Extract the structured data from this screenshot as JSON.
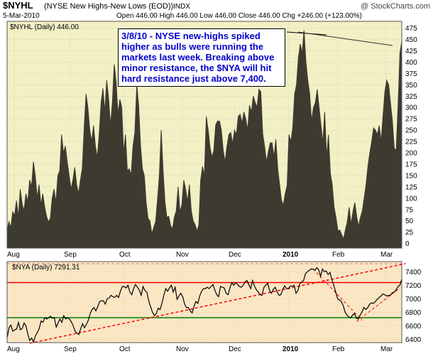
{
  "header": {
    "symbol": "$NYHL",
    "description": "(NYSE New Highs-New Lows (EOD))",
    "exchange": "INDX",
    "watermark": "@ StockCharts.com",
    "date": "5-Mar-2010",
    "quote": "Open 446.00  High 446.00  Low 446.00  Close 446.00  Chg +246.00 (+123.00%)"
  },
  "annotation": "3/8/10 - NYSE new-highs spiked higher as bulls were running the markets last week.  Breaking above minor resistance, the $NYA will hit hard resistance just above 7,400.",
  "colors": {
    "top_bg": "#f2f0c4",
    "area_fill": "#3d3a30",
    "bottom_bg": "#fbe6c4",
    "nya_line": "#000000",
    "resistance": "#ff0000",
    "support": "#008000",
    "trend": "#ff0000"
  },
  "chart_data": [
    {
      "type": "area",
      "legend": "$NYHL (Daily) 446.00",
      "ylim": [
        -10,
        490
      ],
      "y_ticks": [
        "0",
        "25",
        "50",
        "75",
        "100",
        "125",
        "150",
        "175",
        "200",
        "225",
        "250",
        "275",
        "300",
        "325",
        "350",
        "375",
        "400",
        "425",
        "450",
        "475"
      ],
      "x_labels": [
        "Aug",
        "Sep",
        "Oct",
        "Nov",
        "Dec",
        "2010",
        "Feb",
        "Mar"
      ],
      "series": [
        {
          "values": [
            30,
            48,
            35,
            70,
            62,
            95,
            58,
            120,
            88,
            72,
            110,
            92,
            140,
            125,
            180,
            150,
            100,
            130,
            85,
            110,
            80,
            60,
            48,
            55,
            100,
            120,
            90,
            150,
            160,
            240,
            200,
            215,
            180,
            150,
            120,
            140,
            168,
            130,
            110,
            140,
            165,
            255,
            330,
            300,
            250,
            225,
            260,
            215,
            190,
            240,
            310,
            342,
            290,
            360,
            320,
            260,
            310,
            395,
            356,
            285,
            318,
            300,
            200,
            240,
            160,
            165,
            150,
            215,
            245,
            350,
            305,
            215,
            165,
            150,
            90,
            55,
            50,
            22,
            35,
            48,
            95,
            150,
            250,
            160,
            92,
            58,
            60,
            40,
            32,
            58,
            72,
            125,
            70,
            85,
            140,
            120,
            92,
            130,
            72,
            50,
            42,
            28,
            40,
            140,
            170,
            150,
            280,
            250,
            212,
            190,
            205,
            262,
            270,
            270,
            250,
            205,
            180,
            215,
            240,
            245,
            220,
            250,
            240,
            280,
            285,
            265,
            290,
            275,
            250,
            305,
            290,
            325,
            311,
            300,
            340,
            335,
            242,
            215,
            180,
            202,
            222,
            222,
            190,
            230,
            165,
            130,
            95,
            85,
            110,
            128,
            240,
            225,
            255,
            330,
            350,
            410,
            440,
            420,
            470,
            400,
            360,
            330,
            270,
            300,
            310,
            340,
            300,
            260,
            222,
            290,
            190,
            240,
            155,
            130,
            80,
            58,
            28,
            30,
            20,
            10,
            30,
            48,
            80,
            42,
            70,
            90,
            60,
            38,
            58,
            72,
            100,
            130,
            170,
            200,
            225,
            255,
            250,
            240,
            260,
            225,
            280,
            335,
            360,
            350,
            310,
            270,
            210,
            205,
            300,
            420,
            446
          ]
        }
      ]
    },
    {
      "type": "line",
      "legend": "$NYA (Daily) 7291.31",
      "ylim": [
        6350,
        7550
      ],
      "y_ticks": [
        "6400",
        "6600",
        "6800",
        "7000",
        "7200",
        "7400"
      ],
      "x_labels": [
        "Aug",
        "Sep",
        "Oct",
        "Nov",
        "Dec",
        "2010",
        "Feb",
        "Mar"
      ],
      "resistance": 7240,
      "support": 6720,
      "series": [
        {
          "values": [
            6420,
            6570,
            6610,
            6520,
            6540,
            6550,
            6650,
            6540,
            6560,
            6640,
            6600,
            6470,
            6380,
            6420,
            6360,
            6450,
            6500,
            6560,
            6670,
            6650,
            6720,
            6700,
            6720,
            6740,
            6710,
            6720,
            6580,
            6640,
            6700,
            6650,
            6750,
            6700,
            6720,
            6700,
            6660,
            6600,
            6520,
            6490,
            6470,
            6560,
            6630,
            6570,
            6620,
            6680,
            6780,
            6840,
            6870,
            6820,
            6880,
            6960,
            6970,
            6970,
            6920,
            7000,
            7010,
            7050,
            7030,
            7020,
            7050,
            7020,
            7110,
            7180,
            7180,
            7160,
            7200,
            7100,
            7060,
            7150,
            7210,
            7170,
            7130,
            7050,
            7180,
            7120,
            7100,
            6970,
            6880,
            6800,
            6750,
            6780,
            6860,
            6840,
            6930,
            7050,
            7150,
            7110,
            7160,
            7200,
            7100,
            7170,
            6990,
            7040,
            7080,
            7030,
            6920,
            6870,
            6870,
            6820,
            6790,
            6890,
            6960,
            6930,
            7040,
            7110,
            7150,
            7150,
            7170,
            7150,
            7180,
            7210,
            7130,
            7060,
            7030,
            7180,
            7170,
            7160,
            7080,
            7060,
            7160,
            7240,
            7200,
            7240,
            7210,
            7180,
            7170,
            7200,
            7250,
            7270,
            7210,
            7150,
            7270,
            7190,
            7130,
            7100,
            7060,
            7050,
            7170,
            7200,
            7230,
            7120,
            7080,
            7140,
            7170,
            7100,
            7050,
            7060,
            7140,
            7190,
            7150,
            7150,
            7190,
            7180,
            7200,
            7080,
            7120,
            7220,
            7250,
            7270,
            7370,
            7400,
            7420,
            7440,
            7440,
            7420,
            7460,
            7430,
            7330,
            7440,
            7400,
            7410,
            7360,
            7390,
            7280,
            7200,
            7100,
            7000,
            6980,
            6960,
            6900,
            6800,
            6760,
            6730,
            6720,
            6760,
            6780,
            6710,
            6700,
            6760,
            6810,
            6870,
            6840,
            6870,
            6920,
            6940,
            6930,
            6960,
            6990,
            7020,
            7040,
            7070,
            7060,
            7040,
            7050,
            7050,
            7090,
            7100,
            7130,
            7180,
            7200,
            7291.31
          ]
        }
      ]
    }
  ]
}
